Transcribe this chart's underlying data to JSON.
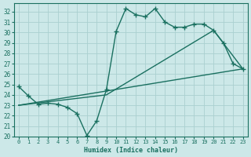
{
  "xlabel": "Humidex (Indice chaleur)",
  "bg_color": "#cce8e8",
  "grid_color": "#aad0d0",
  "line_color": "#1a7060",
  "xlim": [
    -0.5,
    23.5
  ],
  "ylim": [
    20,
    32.8
  ],
  "xticks": [
    0,
    1,
    2,
    3,
    4,
    5,
    6,
    7,
    8,
    9,
    10,
    11,
    12,
    13,
    14,
    15,
    16,
    17,
    18,
    19,
    20,
    21,
    22,
    23
  ],
  "yticks": [
    20,
    21,
    22,
    23,
    24,
    25,
    26,
    27,
    28,
    29,
    30,
    31,
    32
  ],
  "line1_x": [
    0,
    1,
    2,
    3,
    4,
    5,
    6,
    7,
    8,
    9,
    10,
    11,
    12,
    13,
    14,
    15,
    16,
    17,
    18,
    19,
    20,
    21,
    22,
    23
  ],
  "line1_y": [
    24.8,
    23.9,
    23.1,
    23.2,
    23.1,
    22.8,
    22.2,
    20.1,
    21.5,
    24.5,
    30.1,
    32.3,
    31.7,
    31.5,
    32.3,
    31.0,
    30.5,
    30.5,
    30.8,
    30.8,
    30.2,
    29.0,
    27.0,
    26.5
  ],
  "line2_x": [
    0,
    23
  ],
  "line2_y": [
    23.0,
    26.5
  ],
  "line3_x": [
    0,
    9,
    20,
    23
  ],
  "line3_y": [
    23.0,
    24.0,
    30.2,
    26.5
  ],
  "marker": "+",
  "marker_size": 4,
  "linewidth": 1.0
}
